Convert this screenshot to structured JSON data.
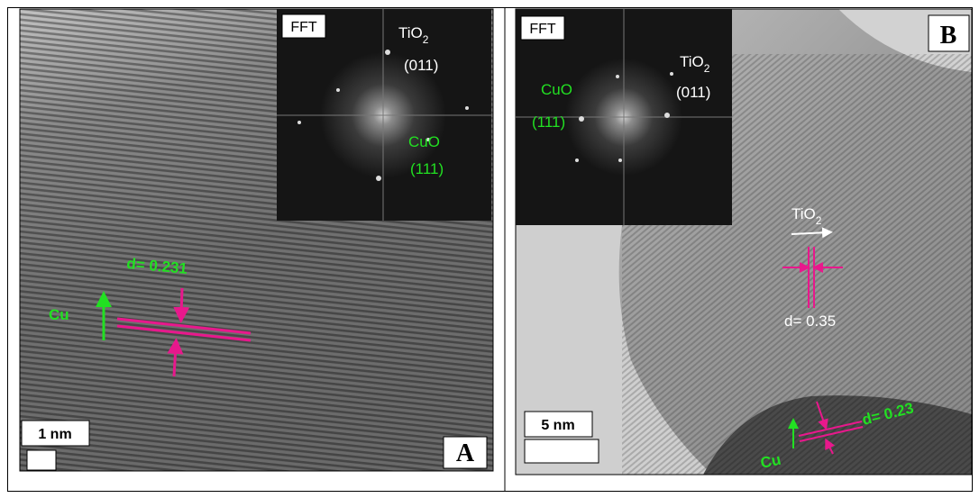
{
  "panel_a": {
    "fft_label": "FFT",
    "tio2": {
      "text": "TiO",
      "sub": "2"
    },
    "tio2_plane": "(011)",
    "cuo": "CuO",
    "cuo_plane": "(111)",
    "d_spacing": "d= 0.231",
    "element": "Cu",
    "scale_bar": "1 nm",
    "panel_label": "A"
  },
  "panel_b": {
    "fft_label": "FFT",
    "cuo": "CuO",
    "cuo_plane": "(111)",
    "tio2": {
      "text": "TiO",
      "sub": "2"
    },
    "tio2_plane": "(011)",
    "tio2_fringe": {
      "text": "TiO",
      "sub": "2"
    },
    "d_spacing_tio2": "d= 0.35",
    "d_spacing_cu": "d= 0.23",
    "element": "Cu",
    "scale_bar": "5 nm",
    "panel_label": "B"
  }
}
